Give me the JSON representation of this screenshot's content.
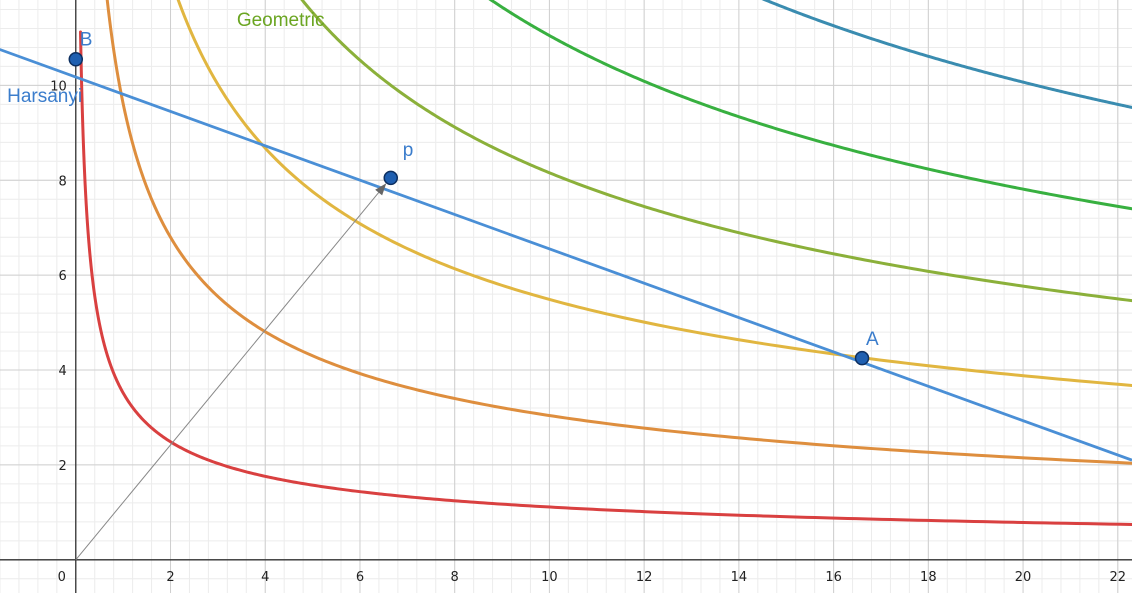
{
  "chart_data": {
    "type": "line",
    "title": "",
    "xlabel": "",
    "ylabel": "",
    "xlim": [
      -1.6,
      22.3
    ],
    "ylim": [
      -0.7,
      11.8
    ],
    "grid": true,
    "minor_grid": true,
    "x_ticks": [
      {
        "value": 0,
        "label": "0"
      },
      {
        "value": 2,
        "label": "2"
      },
      {
        "value": 4,
        "label": "4"
      },
      {
        "value": 6,
        "label": "6"
      },
      {
        "value": 8,
        "label": "8"
      },
      {
        "value": 10,
        "label": "10"
      },
      {
        "value": 12,
        "label": "12"
      },
      {
        "value": 14,
        "label": "14"
      },
      {
        "value": 16,
        "label": "16"
      },
      {
        "value": 18,
        "label": "18"
      },
      {
        "value": 20,
        "label": "20"
      },
      {
        "value": 22,
        "label": "22"
      }
    ],
    "y_ticks": [
      {
        "value": 2,
        "label": "2"
      },
      {
        "value": 4,
        "label": "4"
      },
      {
        "value": 6,
        "label": "6"
      },
      {
        "value": 8,
        "label": "8"
      },
      {
        "value": 10,
        "label": "10"
      }
    ],
    "series": [
      {
        "kind": "hyperbola",
        "k": 0.75,
        "color": "#d94040",
        "x_start": 0.1
      },
      {
        "kind": "hyperbola",
        "k": 2.05,
        "color": "#de8e3e",
        "x_start": 0.03
      },
      {
        "kind": "hyperbola",
        "k": 3.7,
        "color": "#e1b640",
        "x_start": 0.12
      },
      {
        "kind": "hyperbola",
        "k": 5.5,
        "color": "#8bb03a",
        "x_start": 1.5
      },
      {
        "kind": "hyperbola",
        "k": 7.45,
        "color": "#38b040",
        "x_start": 3.8
      },
      {
        "kind": "hyperbola",
        "k": 9.6,
        "color": "#3a8cb0",
        "x_start": 11.0
      },
      {
        "kind": "line",
        "name": "Harsanyi",
        "color": "#4a8fd6",
        "points": [
          [
            -2,
            10.9
          ],
          [
            22.3,
            2.1
          ]
        ]
      },
      {
        "kind": "arrow",
        "color": "#888888",
        "points": [
          [
            0,
            0
          ],
          [
            6.65,
            8.05
          ]
        ]
      }
    ],
    "curve_labels": [
      {
        "text": "Geometric",
        "color": "#6aa521",
        "x": 3.4,
        "y": 11.25
      },
      {
        "text": "Harsanyi",
        "color": "#3b7dcc",
        "x": -1.45,
        "y": 9.65
      }
    ],
    "points": [
      {
        "name": "B",
        "x": 0.0,
        "y": 10.55
      },
      {
        "name": "p",
        "x": 6.65,
        "y": 8.05
      },
      {
        "name": "A",
        "x": 16.6,
        "y": 4.25
      }
    ],
    "point_color": "#1f5fb0"
  }
}
